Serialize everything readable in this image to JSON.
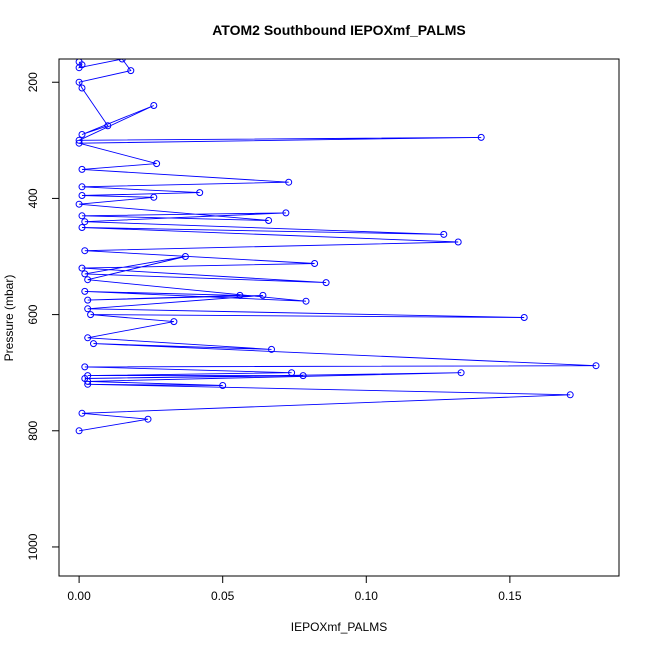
{
  "chart_data": {
    "type": "line",
    "title": "ATOM2 Southbound IEPOXmf_PALMS",
    "xlabel": "IEPOXmf_PALMS",
    "ylabel": "Pressure (mbar)",
    "xlim": [
      -0.007,
      0.188
    ],
    "ylim": [
      1050,
      160
    ],
    "y_reversed": true,
    "x_ticks": [
      0.0,
      0.05,
      0.1,
      0.15
    ],
    "x_tick_labels": [
      "0.00",
      "0.05",
      "0.10",
      "0.15"
    ],
    "y_ticks": [
      200,
      400,
      600,
      800,
      1000
    ],
    "y_tick_labels": [
      "200",
      "400",
      "600",
      "800",
      "1000"
    ],
    "grid": false,
    "marker": "open-circle",
    "color": "#0000ff",
    "series": [
      {
        "x": [
          0,
          0.001,
          0,
          0.015,
          0.018,
          0,
          0.001,
          0.01,
          0.001,
          0.026,
          0,
          0.14,
          0,
          0.027,
          0.001,
          0.073,
          0.001,
          0.042,
          0.001,
          0.026,
          0,
          0.066,
          0.001,
          0.072,
          0.002,
          0.127,
          0.001,
          0.132,
          0.002,
          0.082,
          0.001,
          0.086,
          0.002,
          0.037,
          0.003,
          0.079,
          0.002,
          0.056,
          0.003,
          0.064,
          0.003,
          0.155,
          0.004,
          0.033,
          0.003,
          0.067,
          0.005,
          0.18,
          0.002,
          0.074,
          0.003,
          0.078,
          0.002,
          0.133,
          0.003,
          0.05,
          0.003,
          0.171,
          0.001,
          0.024,
          0
        ],
        "y": [
          165,
          170,
          175,
          160,
          180,
          200,
          210,
          275,
          290,
          240,
          300,
          295,
          305,
          340,
          350,
          372,
          380,
          390,
          395,
          398,
          410,
          438,
          430,
          425,
          440,
          462,
          450,
          475,
          490,
          512,
          520,
          545,
          530,
          500,
          540,
          577,
          560,
          567,
          575,
          567,
          590,
          605,
          600,
          612,
          640,
          660,
          650,
          688,
          690,
          700,
          705,
          705,
          710,
          700,
          715,
          722,
          720,
          738,
          770,
          780,
          800
        ]
      }
    ]
  }
}
